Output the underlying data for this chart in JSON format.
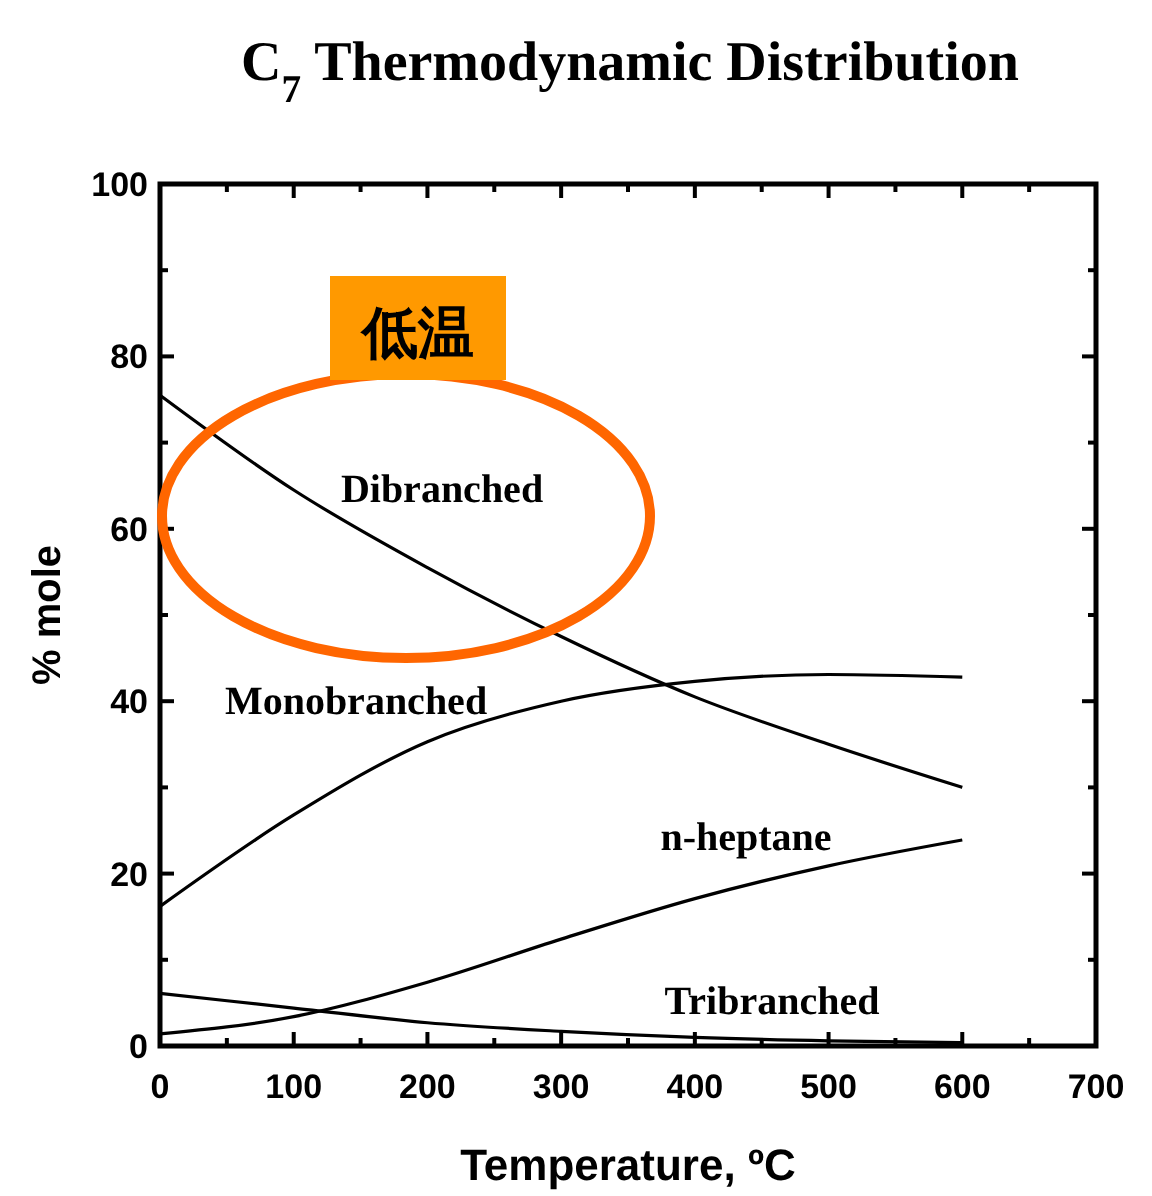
{
  "chart_data": {
    "type": "line",
    "title": "C$_{7}$ Thermodynamic Distribution",
    "xlabel": "Temperature, ºC",
    "ylabel": "% mole",
    "x": [
      0,
      100,
      200,
      300,
      400,
      500,
      600
    ],
    "series": [
      {
        "name": "Dibranched",
        "color": "#000000",
        "values": [
          75.5,
          64.5,
          55.5,
          47.5,
          40.5,
          35,
          30
        ]
      },
      {
        "name": "Monobranched",
        "color": "#000000",
        "values": [
          16.2,
          26.8,
          35.3,
          40,
          42.3,
          43.1,
          42.8
        ]
      },
      {
        "name": "n-heptane",
        "color": "#000000",
        "values": [
          1.4,
          3.4,
          7.4,
          12.4,
          17.1,
          20.9,
          23.9
        ]
      },
      {
        "name": "Tribranched",
        "color": "#000000",
        "values": [
          6.1,
          4.4,
          2.7,
          1.7,
          1.0,
          0.6,
          0.4
        ]
      }
    ],
    "xlim": [
      0,
      700
    ],
    "ylim": [
      0,
      100
    ],
    "xticks": [
      0,
      {
        "value": 50,
        "label": null
      },
      100,
      {
        "value": 150,
        "label": null
      },
      200,
      {
        "value": 250,
        "label": null
      },
      300,
      {
        "value": 350,
        "label": null
      },
      400,
      {
        "value": 450,
        "label": null
      },
      500,
      {
        "value": 550,
        "label": null
      },
      600,
      {
        "value": 650,
        "label": null
      },
      700
    ],
    "yticks": [
      0,
      {
        "value": 10,
        "label": null
      },
      20,
      {
        "value": 30,
        "label": null
      },
      40,
      {
        "value": 50,
        "label": null
      },
      60,
      {
        "value": 70,
        "label": null
      },
      80,
      {
        "value": 90,
        "label": null
      },
      100
    ],
    "grid": false,
    "marker": "none",
    "line_style": "solid",
    "annotations": [
      "低温"
    ]
  }
}
